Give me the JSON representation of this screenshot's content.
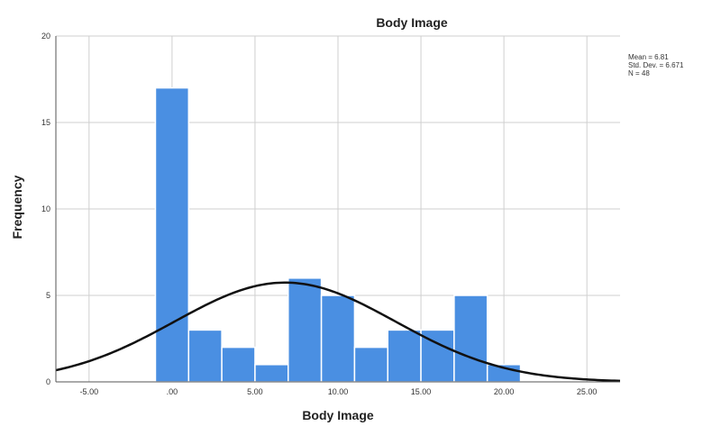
{
  "chart_data": {
    "type": "bar",
    "title": "Body Image",
    "xlabel": "Body Image",
    "ylabel": "Frequency",
    "xlim": [
      -7,
      27
    ],
    "ylim": [
      0,
      20
    ],
    "x_ticks": [
      -5,
      0,
      5,
      10,
      15,
      20,
      25
    ],
    "x_tick_labels": [
      "-5.00",
      ".00",
      "5.00",
      "10.00",
      "15.00",
      "20.00",
      "25.00"
    ],
    "y_ticks": [
      0,
      5,
      10,
      15,
      20
    ],
    "y_tick_labels": [
      "0",
      "5",
      "10",
      "15",
      "20"
    ],
    "grid": true,
    "bin_width": 2,
    "bins": [
      {
        "start": -1,
        "end": 1,
        "count": 17
      },
      {
        "start": 1,
        "end": 3,
        "count": 3
      },
      {
        "start": 3,
        "end": 5,
        "count": 2
      },
      {
        "start": 5,
        "end": 7,
        "count": 1
      },
      {
        "start": 7,
        "end": 9,
        "count": 6
      },
      {
        "start": 9,
        "end": 11,
        "count": 5
      },
      {
        "start": 11,
        "end": 13,
        "count": 2
      },
      {
        "start": 13,
        "end": 15,
        "count": 3
      },
      {
        "start": 15,
        "end": 17,
        "count": 3
      },
      {
        "start": 17,
        "end": 19,
        "count": 5
      },
      {
        "start": 19,
        "end": 21,
        "count": 1
      }
    ],
    "normal_curve": {
      "mean": 6.81,
      "sd": 6.671,
      "n": 48
    },
    "stats_labels": [
      "Mean = 6.81",
      "Std. Dev. = 6.671",
      "N = 48"
    ],
    "bar_color": "#4a8fe2",
    "curve_color": "#111111",
    "legend_position": "top-right"
  }
}
